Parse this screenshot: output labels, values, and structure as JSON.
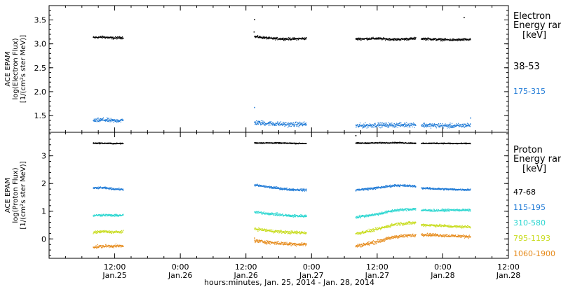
{
  "chart_data": [
    {
      "type": "scatter",
      "panel": "electron",
      "ylabel": [
        "ACE EPAM",
        "log(Electron Flux)",
        "[1/(cm²s ster MeV)]"
      ],
      "ylim": [
        1.15,
        3.8
      ],
      "yticks": [
        1.5,
        2.0,
        2.5,
        3.0,
        3.5
      ],
      "ytick_labels": [
        "1.5",
        "2.0",
        "2.5",
        "3.0",
        "3.5"
      ],
      "legend_title": [
        "Electron",
        "Energy ran",
        "[keV]"
      ],
      "series": [
        {
          "name": "38-53",
          "color": "#000000",
          "segments": [
            {
              "start": 8.0,
              "end": 13.5,
              "values": [
                3.14,
                3.15,
                3.13,
                3.14
              ],
              "spread": 0.035
            },
            {
              "start": 37.5,
              "end": 47.0,
              "values": [
                3.16,
                3.12,
                3.11,
                3.12
              ],
              "spread": 0.035
            },
            {
              "start": 56.0,
              "end": 67.0,
              "values": [
                3.11,
                3.12,
                3.1,
                3.12
              ],
              "spread": 0.035
            },
            {
              "start": 68.0,
              "end": 77.0,
              "values": [
                3.12,
                3.1,
                3.09,
                3.1
              ],
              "spread": 0.035
            }
          ],
          "outliers": [
            [
              37.5,
              3.52
            ],
            [
              37.4,
              3.26
            ],
            [
              75.8,
              3.56
            ]
          ]
        },
        {
          "name": "175-315",
          "color": "#1f7ad6",
          "segments": [
            {
              "start": 8.0,
              "end": 13.5,
              "values": [
                1.4,
                1.42,
                1.4,
                1.41
              ],
              "spread": 0.06
            },
            {
              "start": 37.5,
              "end": 47.0,
              "values": [
                1.36,
                1.34,
                1.32,
                1.33
              ],
              "spread": 0.07
            },
            {
              "start": 56.0,
              "end": 67.0,
              "values": [
                1.29,
                1.31,
                1.31,
                1.32
              ],
              "spread": 0.07
            },
            {
              "start": 68.0,
              "end": 77.0,
              "values": [
                1.31,
                1.3,
                1.29,
                1.31
              ],
              "spread": 0.07
            }
          ],
          "outliers": [
            [
              37.5,
              1.68
            ],
            [
              77.0,
              1.46
            ]
          ]
        }
      ]
    },
    {
      "type": "scatter",
      "panel": "proton",
      "ylabel": [
        "ACE EPAM",
        "log(Proton Flux)",
        "[1/(cm²s ster MeV)]"
      ],
      "ylim": [
        -0.7,
        3.85
      ],
      "yticks": [
        0,
        1,
        2,
        3
      ],
      "ytick_labels": [
        "0",
        "1",
        "2",
        "3"
      ],
      "legend_title": [
        "Proton",
        "Energy ran",
        "[keV]"
      ],
      "series": [
        {
          "name": "47-68",
          "color": "#000000",
          "segments": [
            {
              "start": 8.0,
              "end": 13.5,
              "values": [
                3.47,
                3.47,
                3.46,
                3.46
              ],
              "spread": 0.03
            },
            {
              "start": 37.5,
              "end": 47.0,
              "values": [
                3.48,
                3.48,
                3.47,
                3.46
              ],
              "spread": 0.03
            },
            {
              "start": 56.0,
              "end": 67.0,
              "values": [
                3.47,
                3.48,
                3.49,
                3.47
              ],
              "spread": 0.03
            },
            {
              "start": 68.0,
              "end": 77.0,
              "values": [
                3.46,
                3.47,
                3.46,
                3.46
              ],
              "spread": 0.03
            }
          ],
          "outliers": [
            [
              56.0,
              3.75
            ]
          ]
        },
        {
          "name": "115-195",
          "color": "#1f7ad6",
          "segments": [
            {
              "start": 8.0,
              "end": 13.5,
              "values": [
                1.85,
                1.86,
                1.82,
                1.8
              ],
              "spread": 0.05
            },
            {
              "start": 37.5,
              "end": 47.0,
              "values": [
                1.96,
                1.87,
                1.8,
                1.78
              ],
              "spread": 0.06
            },
            {
              "start": 56.0,
              "end": 67.0,
              "values": [
                1.78,
                1.85,
                1.95,
                1.92
              ],
              "spread": 0.06
            },
            {
              "start": 68.0,
              "end": 77.0,
              "values": [
                1.85,
                1.82,
                1.8,
                1.79
              ],
              "spread": 0.05
            }
          ],
          "outliers": []
        },
        {
          "name": "310-580",
          "color": "#2ad6d0",
          "segments": [
            {
              "start": 8.0,
              "end": 13.5,
              "values": [
                0.86,
                0.88,
                0.86,
                0.87
              ],
              "spread": 0.06
            },
            {
              "start": 37.5,
              "end": 47.0,
              "values": [
                0.98,
                0.92,
                0.85,
                0.84
              ],
              "spread": 0.07
            },
            {
              "start": 56.0,
              "end": 67.0,
              "values": [
                0.8,
                0.9,
                1.05,
                1.1
              ],
              "spread": 0.07
            },
            {
              "start": 68.0,
              "end": 77.0,
              "values": [
                1.05,
                1.04,
                1.06,
                1.05
              ],
              "spread": 0.06
            }
          ],
          "outliers": []
        },
        {
          "name": "795-1193",
          "color": "#c8dc1e",
          "segments": [
            {
              "start": 8.0,
              "end": 13.5,
              "values": [
                0.25,
                0.28,
                0.26,
                0.27
              ],
              "spread": 0.07
            },
            {
              "start": 37.5,
              "end": 47.0,
              "values": [
                0.38,
                0.3,
                0.25,
                0.24
              ],
              "spread": 0.08
            },
            {
              "start": 56.0,
              "end": 67.0,
              "values": [
                0.2,
                0.35,
                0.55,
                0.6
              ],
              "spread": 0.08
            },
            {
              "start": 68.0,
              "end": 77.0,
              "values": [
                0.52,
                0.5,
                0.46,
                0.45
              ],
              "spread": 0.07
            }
          ],
          "outliers": []
        },
        {
          "name": "1060-1900",
          "color": "#e68a1a",
          "segments": [
            {
              "start": 8.0,
              "end": 13.5,
              "values": [
                -0.28,
                -0.25,
                -0.24,
                -0.25
              ],
              "spread": 0.08
            },
            {
              "start": 37.5,
              "end": 47.0,
              "values": [
                -0.05,
                -0.12,
                -0.17,
                -0.18
              ],
              "spread": 0.09
            },
            {
              "start": 56.0,
              "end": 67.0,
              "values": [
                -0.25,
                -0.1,
                0.1,
                0.15
              ],
              "spread": 0.09
            },
            {
              "start": 68.0,
              "end": 77.0,
              "values": [
                0.18,
                0.15,
                0.12,
                0.1
              ],
              "spread": 0.08
            }
          ],
          "outliers": [
            [
              37.5,
              0.05
            ]
          ]
        }
      ]
    }
  ],
  "xaxis": {
    "range_hours": [
      0,
      84
    ],
    "ticks": [
      {
        "hours": 12,
        "time": "12:00",
        "date": "Jan.25"
      },
      {
        "hours": 24,
        "time": "0:00",
        "date": "Jan.26"
      },
      {
        "hours": 36,
        "time": "12:00",
        "date": "Jan.26"
      },
      {
        "hours": 48,
        "time": "0:00",
        "date": "Jan.27"
      },
      {
        "hours": 60,
        "time": "12:00",
        "date": "Jan.27"
      },
      {
        "hours": 72,
        "time": "0:00",
        "date": "Jan.28"
      },
      {
        "hours": 84,
        "time": "12:00",
        "date": "Jan.28"
      }
    ],
    "label": "hours:minutes, Jan. 25, 2014 - Jan. 28, 2014"
  }
}
